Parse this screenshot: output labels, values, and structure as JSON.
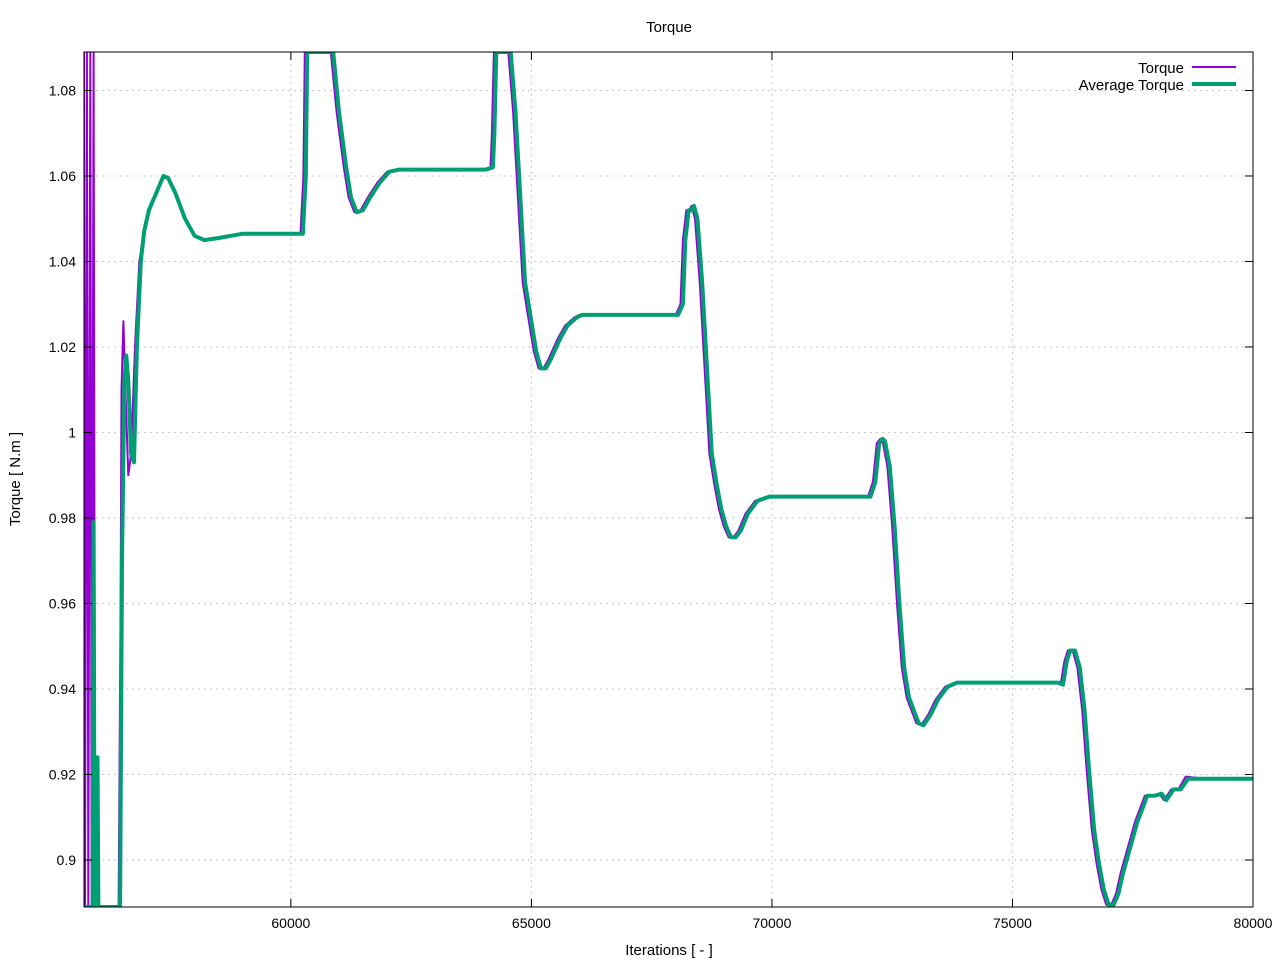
{
  "chart_data": {
    "type": "line",
    "title": "Torque",
    "xlabel": "Iterations [ - ]",
    "ylabel": "Torque [ N.m ]",
    "xlim": [
      55700,
      80000
    ],
    "ylim": [
      0.889,
      1.089
    ],
    "x_ticks": [
      60000,
      65000,
      70000,
      75000,
      80000
    ],
    "y_ticks": [
      0.9,
      0.92,
      0.94,
      0.96,
      0.98,
      1,
      1.02,
      1.04,
      1.06,
      1.08
    ],
    "x_tick_labels": [
      "60000",
      "65000",
      "70000",
      "75000",
      "80000"
    ],
    "y_tick_labels": [
      "0.9",
      "0.92",
      "0.94",
      "0.96",
      "0.98",
      "1",
      "1.02",
      "1.04",
      "1.06",
      "1.08"
    ],
    "grid": true,
    "legend_position": "top-right",
    "series": [
      {
        "name": "Torque",
        "color": "#9400d3",
        "points": [
          [
            55700,
            1.089
          ],
          [
            55720,
            0.889
          ],
          [
            55760,
            1.089
          ],
          [
            55790,
            0.889
          ],
          [
            55830,
            1.089
          ],
          [
            55860,
            0.889
          ],
          [
            55900,
            1.089
          ],
          [
            55930,
            0.889
          ],
          [
            56000,
            0.889
          ],
          [
            56420,
            0.889
          ],
          [
            56460,
            0.96
          ],
          [
            56480,
            1.01
          ],
          [
            56520,
            1.026
          ],
          [
            56560,
            1.01
          ],
          [
            56620,
            0.99
          ],
          [
            56680,
            0.995
          ],
          [
            56760,
            1.02
          ],
          [
            56850,
            1.04
          ],
          [
            56950,
            1.047
          ],
          [
            57050,
            1.052
          ],
          [
            57200,
            1.056
          ],
          [
            57350,
            1.06
          ],
          [
            57450,
            1.0595
          ],
          [
            57600,
            1.056
          ],
          [
            57800,
            1.05
          ],
          [
            58000,
            1.046
          ],
          [
            58200,
            1.045
          ],
          [
            58500,
            1.0455
          ],
          [
            59000,
            1.0465
          ],
          [
            59500,
            1.0465
          ],
          [
            60000,
            1.0465
          ],
          [
            60200,
            1.0465
          ],
          [
            60260,
            1.06
          ],
          [
            60290,
            1.089
          ],
          [
            60830,
            1.089
          ],
          [
            60950,
            1.075
          ],
          [
            61100,
            1.062
          ],
          [
            61200,
            1.055
          ],
          [
            61320,
            1.0515
          ],
          [
            61450,
            1.052
          ],
          [
            61600,
            1.055
          ],
          [
            61800,
            1.0585
          ],
          [
            62000,
            1.061
          ],
          [
            62200,
            1.0615
          ],
          [
            63000,
            1.0615
          ],
          [
            64000,
            1.0615
          ],
          [
            64150,
            1.062
          ],
          [
            64180,
            1.07
          ],
          [
            64220,
            1.089
          ],
          [
            64520,
            1.089
          ],
          [
            64620,
            1.075
          ],
          [
            64720,
            1.055
          ],
          [
            64820,
            1.035
          ],
          [
            64920,
            1.028
          ],
          [
            65050,
            1.019
          ],
          [
            65150,
            1.015
          ],
          [
            65250,
            1.015
          ],
          [
            65350,
            1.017
          ],
          [
            65550,
            1.022
          ],
          [
            65700,
            1.025
          ],
          [
            65900,
            1.027
          ],
          [
            66000,
            1.0275
          ],
          [
            67000,
            1.0275
          ],
          [
            67900,
            1.0275
          ],
          [
            68000,
            1.0275
          ],
          [
            68100,
            1.03
          ],
          [
            68150,
            1.045
          ],
          [
            68220,
            1.052
          ],
          [
            68280,
            1.052
          ],
          [
            68330,
            1.053
          ],
          [
            68400,
            1.05
          ],
          [
            68500,
            1.035
          ],
          [
            68600,
            1.015
          ],
          [
            68700,
            0.995
          ],
          [
            68800,
            0.988
          ],
          [
            68900,
            0.982
          ],
          [
            69000,
            0.978
          ],
          [
            69100,
            0.9755
          ],
          [
            69200,
            0.9755
          ],
          [
            69300,
            0.977
          ],
          [
            69450,
            0.981
          ],
          [
            69650,
            0.984
          ],
          [
            69900,
            0.985
          ],
          [
            71000,
            0.985
          ],
          [
            71900,
            0.985
          ],
          [
            72000,
            0.985
          ],
          [
            72100,
            0.9885
          ],
          [
            72180,
            0.9975
          ],
          [
            72250,
            0.9985
          ],
          [
            72300,
            0.998
          ],
          [
            72400,
            0.992
          ],
          [
            72500,
            0.978
          ],
          [
            72600,
            0.96
          ],
          [
            72700,
            0.945
          ],
          [
            72800,
            0.938
          ],
          [
            72900,
            0.935
          ],
          [
            73000,
            0.932
          ],
          [
            73100,
            0.9315
          ],
          [
            73250,
            0.934
          ],
          [
            73400,
            0.9375
          ],
          [
            73600,
            0.9405
          ],
          [
            73800,
            0.9415
          ],
          [
            74000,
            0.9415
          ],
          [
            75000,
            0.9415
          ],
          [
            75900,
            0.9415
          ],
          [
            76000,
            0.941
          ],
          [
            76080,
            0.9465
          ],
          [
            76150,
            0.949
          ],
          [
            76250,
            0.949
          ],
          [
            76350,
            0.945
          ],
          [
            76450,
            0.935
          ],
          [
            76550,
            0.92
          ],
          [
            76650,
            0.907
          ],
          [
            76750,
            0.899
          ],
          [
            76850,
            0.893
          ],
          [
            76950,
            0.8895
          ],
          [
            77050,
            0.8895
          ],
          [
            77150,
            0.892
          ],
          [
            77250,
            0.897
          ],
          [
            77350,
            0.901
          ],
          [
            77450,
            0.905
          ],
          [
            77550,
            0.909
          ],
          [
            77650,
            0.912
          ],
          [
            77750,
            0.915
          ],
          [
            77900,
            0.915
          ],
          [
            78050,
            0.9155
          ],
          [
            78150,
            0.914
          ],
          [
            78300,
            0.9165
          ],
          [
            78450,
            0.9165
          ],
          [
            78600,
            0.9195
          ],
          [
            79000,
            0.919
          ],
          [
            80000,
            0.919
          ]
        ]
      },
      {
        "name": "Average Torque",
        "color": "#009e73",
        "points": [
          [
            55700,
            0.889
          ],
          [
            55880,
            0.889
          ],
          [
            55900,
            0.979
          ],
          [
            55920,
            0.889
          ],
          [
            55960,
            0.889
          ],
          [
            55980,
            0.924
          ],
          [
            56000,
            0.889
          ],
          [
            56450,
            0.889
          ],
          [
            56490,
            0.97
          ],
          [
            56540,
            1.012
          ],
          [
            56580,
            1.018
          ],
          [
            56620,
            1.012
          ],
          [
            56680,
            0.995
          ],
          [
            56740,
            0.993
          ],
          [
            56800,
            1.02
          ],
          [
            56880,
            1.04
          ],
          [
            56950,
            1.047
          ],
          [
            57050,
            1.052
          ],
          [
            57200,
            1.056
          ],
          [
            57350,
            1.06
          ],
          [
            57450,
            1.0595
          ],
          [
            57600,
            1.056
          ],
          [
            57800,
            1.05
          ],
          [
            58000,
            1.046
          ],
          [
            58200,
            1.045
          ],
          [
            58500,
            1.0455
          ],
          [
            59000,
            1.0465
          ],
          [
            59500,
            1.0465
          ],
          [
            60000,
            1.0465
          ],
          [
            60250,
            1.0465
          ],
          [
            60310,
            1.06
          ],
          [
            60340,
            1.089
          ],
          [
            60880,
            1.089
          ],
          [
            61000,
            1.075
          ],
          [
            61150,
            1.062
          ],
          [
            61250,
            1.055
          ],
          [
            61370,
            1.0515
          ],
          [
            61500,
            1.052
          ],
          [
            61650,
            1.055
          ],
          [
            61850,
            1.0585
          ],
          [
            62050,
            1.061
          ],
          [
            62250,
            1.0615
          ],
          [
            63000,
            1.0615
          ],
          [
            64050,
            1.0615
          ],
          [
            64200,
            1.062
          ],
          [
            64230,
            1.07
          ],
          [
            64270,
            1.089
          ],
          [
            64570,
            1.089
          ],
          [
            64670,
            1.075
          ],
          [
            64770,
            1.055
          ],
          [
            64870,
            1.035
          ],
          [
            64970,
            1.028
          ],
          [
            65100,
            1.019
          ],
          [
            65200,
            1.015
          ],
          [
            65300,
            1.015
          ],
          [
            65400,
            1.017
          ],
          [
            65600,
            1.022
          ],
          [
            65750,
            1.025
          ],
          [
            65950,
            1.027
          ],
          [
            66050,
            1.0275
          ],
          [
            67000,
            1.0275
          ],
          [
            67950,
            1.0275
          ],
          [
            68050,
            1.0275
          ],
          [
            68150,
            1.03
          ],
          [
            68200,
            1.045
          ],
          [
            68270,
            1.052
          ],
          [
            68330,
            1.052
          ],
          [
            68380,
            1.053
          ],
          [
            68450,
            1.05
          ],
          [
            68550,
            1.035
          ],
          [
            68650,
            1.015
          ],
          [
            68750,
            0.995
          ],
          [
            68850,
            0.988
          ],
          [
            68950,
            0.982
          ],
          [
            69050,
            0.978
          ],
          [
            69150,
            0.9755
          ],
          [
            69250,
            0.9755
          ],
          [
            69350,
            0.977
          ],
          [
            69500,
            0.981
          ],
          [
            69700,
            0.984
          ],
          [
            69950,
            0.985
          ],
          [
            71000,
            0.985
          ],
          [
            71950,
            0.985
          ],
          [
            72050,
            0.985
          ],
          [
            72150,
            0.9885
          ],
          [
            72230,
            0.9975
          ],
          [
            72300,
            0.9985
          ],
          [
            72350,
            0.998
          ],
          [
            72450,
            0.992
          ],
          [
            72550,
            0.978
          ],
          [
            72650,
            0.96
          ],
          [
            72750,
            0.945
          ],
          [
            72850,
            0.938
          ],
          [
            72950,
            0.935
          ],
          [
            73050,
            0.932
          ],
          [
            73150,
            0.9315
          ],
          [
            73300,
            0.934
          ],
          [
            73450,
            0.9375
          ],
          [
            73650,
            0.9405
          ],
          [
            73850,
            0.9415
          ],
          [
            74050,
            0.9415
          ],
          [
            75000,
            0.9415
          ],
          [
            75950,
            0.9415
          ],
          [
            76050,
            0.941
          ],
          [
            76130,
            0.9465
          ],
          [
            76200,
            0.949
          ],
          [
            76300,
            0.949
          ],
          [
            76400,
            0.945
          ],
          [
            76500,
            0.935
          ],
          [
            76600,
            0.92
          ],
          [
            76700,
            0.907
          ],
          [
            76800,
            0.899
          ],
          [
            76900,
            0.893
          ],
          [
            77000,
            0.8895
          ],
          [
            77100,
            0.8895
          ],
          [
            77200,
            0.892
          ],
          [
            77300,
            0.897
          ],
          [
            77400,
            0.901
          ],
          [
            77500,
            0.905
          ],
          [
            77600,
            0.909
          ],
          [
            77700,
            0.912
          ],
          [
            77800,
            0.915
          ],
          [
            77950,
            0.915
          ],
          [
            78100,
            0.9155
          ],
          [
            78200,
            0.914
          ],
          [
            78350,
            0.9165
          ],
          [
            78500,
            0.9165
          ],
          [
            78650,
            0.919
          ],
          [
            79000,
            0.919
          ],
          [
            80000,
            0.919
          ]
        ]
      }
    ]
  }
}
